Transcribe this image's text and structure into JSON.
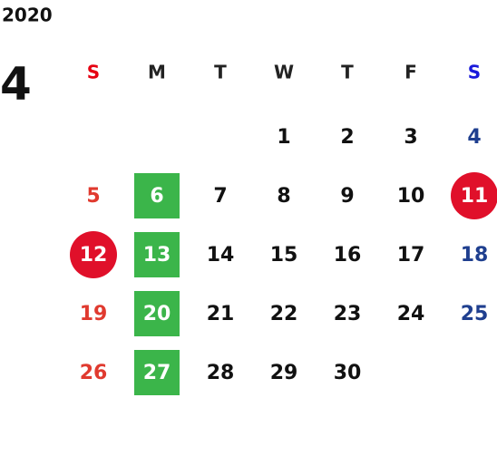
{
  "calendar": {
    "year": "2020",
    "month": "4",
    "weekdays": [
      {
        "label": "S",
        "header_color": "#e60012",
        "day_color": "#e03a2f"
      },
      {
        "label": "M",
        "header_color": "#222222",
        "day_color": "#111111"
      },
      {
        "label": "T",
        "header_color": "#222222",
        "day_color": "#111111"
      },
      {
        "label": "W",
        "header_color": "#222222",
        "day_color": "#111111"
      },
      {
        "label": "T",
        "header_color": "#222222",
        "day_color": "#111111"
      },
      {
        "label": "F",
        "header_color": "#222222",
        "day_color": "#111111"
      },
      {
        "label": "S",
        "header_color": "#1a1adb",
        "day_color": "#1f3f8f"
      }
    ],
    "highlight_colors": {
      "box": "#3bb54a",
      "circle": "#e0102a"
    },
    "weeks": [
      [
        null,
        null,
        null,
        {
          "day": 1
        },
        {
          "day": 2
        },
        {
          "day": 3
        },
        {
          "day": 4
        }
      ],
      [
        {
          "day": 5
        },
        {
          "day": 6,
          "highlight": "box"
        },
        {
          "day": 7
        },
        {
          "day": 8
        },
        {
          "day": 9
        },
        {
          "day": 10
        },
        {
          "day": 11,
          "highlight": "circle"
        }
      ],
      [
        {
          "day": 12,
          "highlight": "circle"
        },
        {
          "day": 13,
          "highlight": "box"
        },
        {
          "day": 14
        },
        {
          "day": 15
        },
        {
          "day": 16
        },
        {
          "day": 17
        },
        {
          "day": 18
        }
      ],
      [
        {
          "day": 19
        },
        {
          "day": 20,
          "highlight": "box"
        },
        {
          "day": 21
        },
        {
          "day": 22
        },
        {
          "day": 23
        },
        {
          "day": 24
        },
        {
          "day": 25
        }
      ],
      [
        {
          "day": 26
        },
        {
          "day": 27,
          "highlight": "box"
        },
        {
          "day": 28
        },
        {
          "day": 29
        },
        {
          "day": 30
        },
        null,
        null
      ]
    ]
  }
}
